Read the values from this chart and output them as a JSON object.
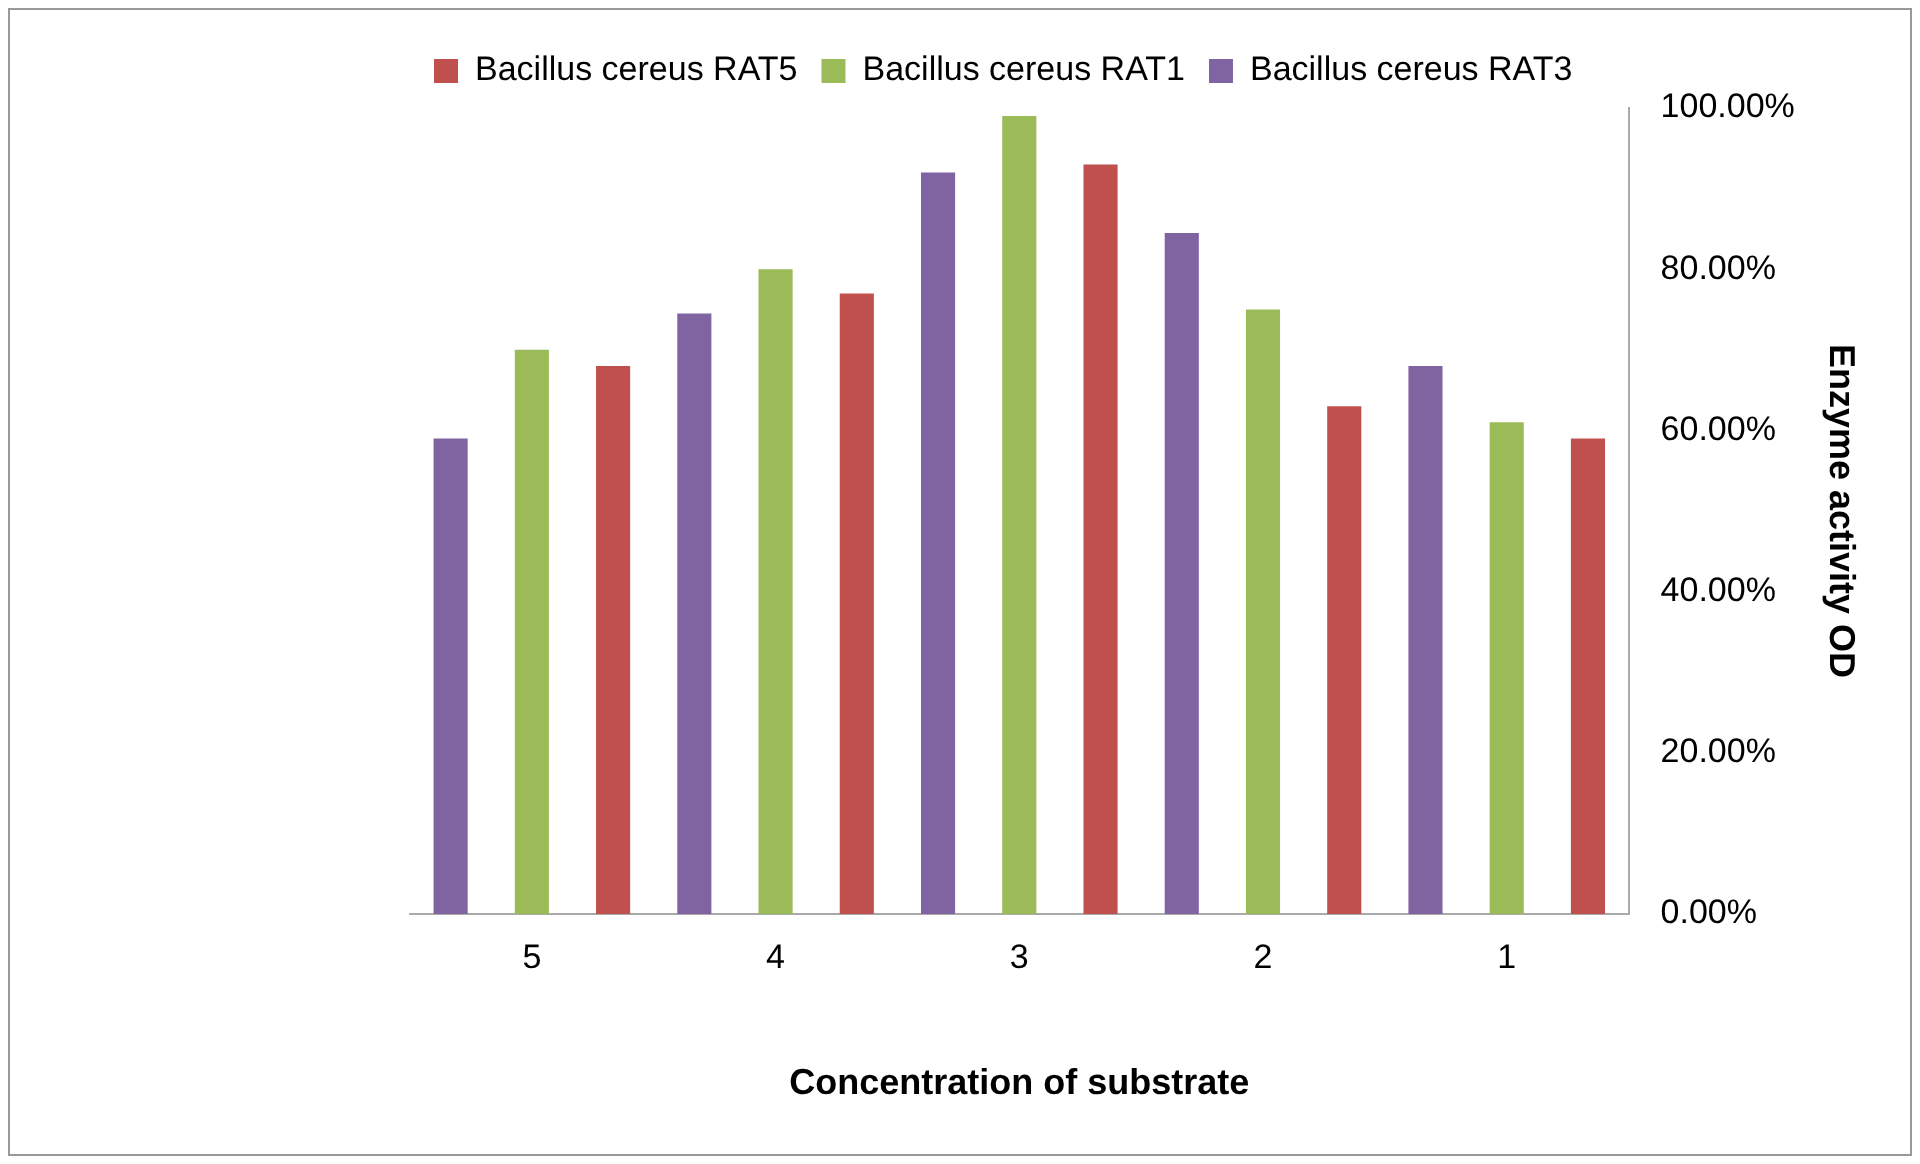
{
  "chart_data": {
    "type": "bar",
    "xlabel": "Concentration of substrate",
    "ylabel": "Enzyme activity OD",
    "categories": [
      "5",
      "4",
      "3",
      "2",
      "1"
    ],
    "series": [
      {
        "name": "Bacillus cereus RAT3",
        "color": "#8064a2",
        "values": [
          59,
          74.5,
          92,
          84.5,
          68
        ]
      },
      {
        "name": "Bacillus cereus RAT1",
        "color": "#9bbb59",
        "values": [
          70,
          80,
          99,
          75,
          61
        ]
      },
      {
        "name": "Bacillus cereus RAT5",
        "color": "#c0504d",
        "values": [
          68,
          77,
          93,
          63,
          59
        ]
      }
    ],
    "ylim": [
      0,
      100
    ],
    "yticks": [
      {
        "value": 0,
        "label": "0.00%"
      },
      {
        "value": 20,
        "label": "20.00%"
      },
      {
        "value": 40,
        "label": "40.00%"
      },
      {
        "value": 60,
        "label": "60.00%"
      },
      {
        "value": 80,
        "label": "80.00%"
      },
      {
        "value": 100,
        "label": "100.00%"
      }
    ],
    "grid": false,
    "legend": "top left"
  }
}
